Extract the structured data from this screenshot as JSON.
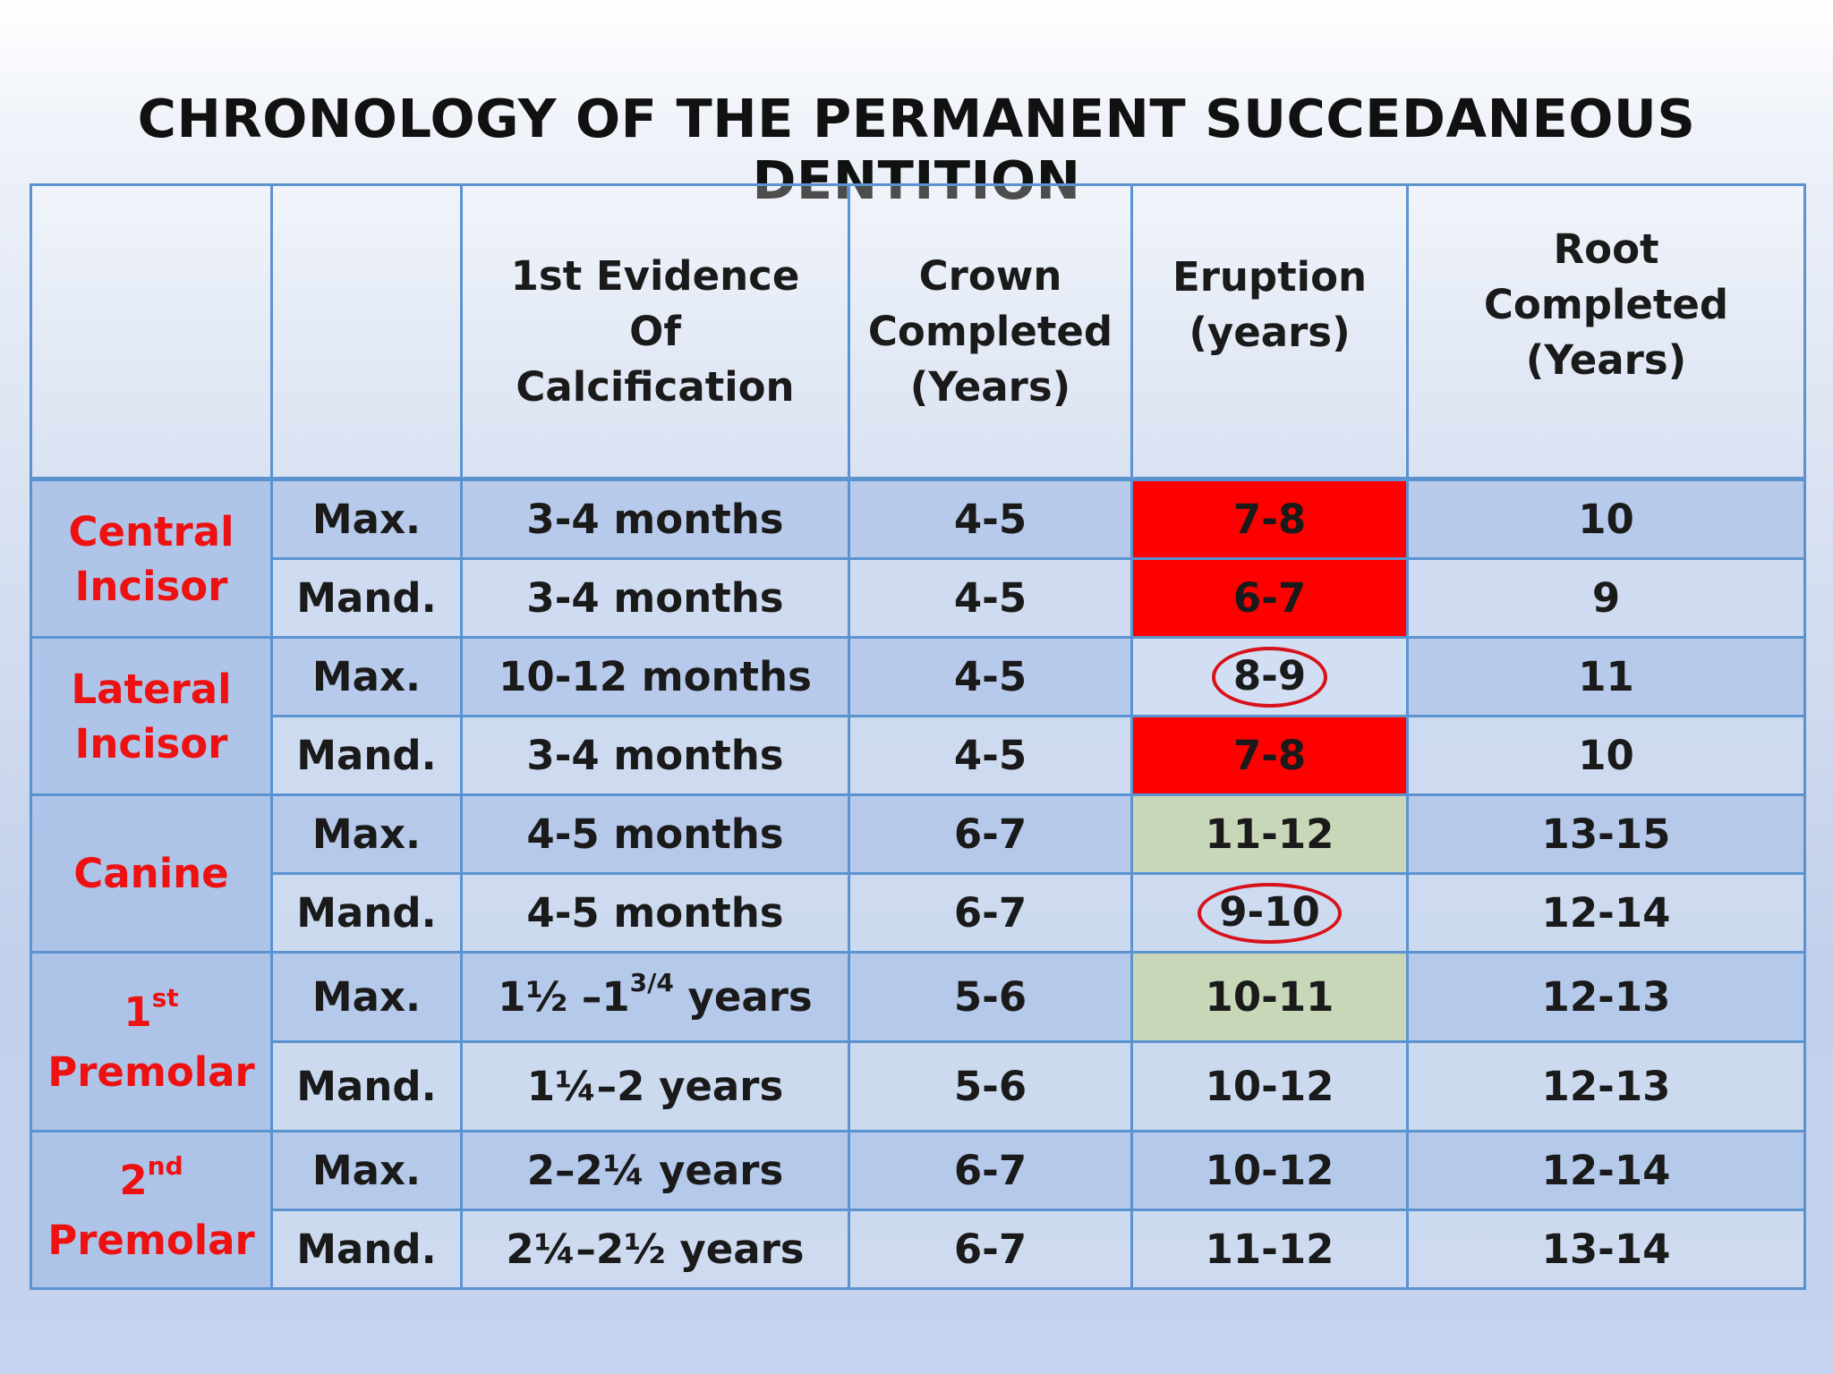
{
  "title": "CHRONOLOGY OF THE PERMANENT SUCCEDANEOUS DENTITION",
  "headers": {
    "col1": "",
    "col2": "",
    "calcification": "1st Evidence Of Calcification",
    "crown_line1": "Crown",
    "crown_line2": "Completed",
    "crown_line3": "(Years)",
    "eruption_line1": "Eruption",
    "eruption_line2": "(years)",
    "root_line1": "Root",
    "root_line2": "Completed",
    "root_line3": "(Years)"
  },
  "teeth": {
    "central_line1": "Central",
    "central_line2": "Incisor",
    "lateral_line1": "Lateral",
    "lateral_line2": "Incisor",
    "canine": "Canine",
    "pm1_num": "1",
    "pm1_sup": "st",
    "pm1_name": "Premolar",
    "pm2_num": "2",
    "pm2_sup": "nd",
    "pm2_name": "Premolar"
  },
  "rows": [
    {
      "jaw": "Max.",
      "calcification": "3-4 months",
      "crown": "4-5",
      "eruption": "7-8",
      "root": "10"
    },
    {
      "jaw": "Mand.",
      "calcification": "3-4 months",
      "crown": "4-5",
      "eruption": "6-7",
      "root": "9"
    },
    {
      "jaw": "Max.",
      "calcification": "10-12 months",
      "crown": "4-5",
      "eruption": "8-9",
      "root": "11"
    },
    {
      "jaw": "Mand.",
      "calcification": "3-4 months",
      "crown": "4-5",
      "eruption": "7-8",
      "root": "10"
    },
    {
      "jaw": "Max.",
      "calcification": "4-5 months",
      "crown": "6-7",
      "eruption": "11-12",
      "root": "13-15"
    },
    {
      "jaw": "Mand.",
      "calcification": "4-5 months",
      "crown": "6-7",
      "eruption": "9-10",
      "root": "12-14"
    },
    {
      "jaw": "Max.",
      "calcification_pre": "1½ –1",
      "calcification_sup": "3/4",
      "calcification_post": " years",
      "crown": "5-6",
      "eruption": "10-11",
      "root": "12-13"
    },
    {
      "jaw": "Mand.",
      "calcification": "1¼–2 years",
      "crown": "5-6",
      "eruption": "10-12",
      "root": "12-13"
    },
    {
      "jaw": "Max.",
      "calcification": "2–2¼ years",
      "crown": "6-7",
      "eruption": "10-12",
      "root": "12-14"
    },
    {
      "jaw": "Mand.",
      "calcification": "2¼–2½ years",
      "crown": "6-7",
      "eruption": "11-12",
      "root": "13-14"
    }
  ],
  "colors": {
    "highlight_red": "#ff0000",
    "highlight_green": "#c9d7b9",
    "circle": "#d8121a",
    "tooth_label": "#ee1111",
    "border": "#5b93d1"
  }
}
